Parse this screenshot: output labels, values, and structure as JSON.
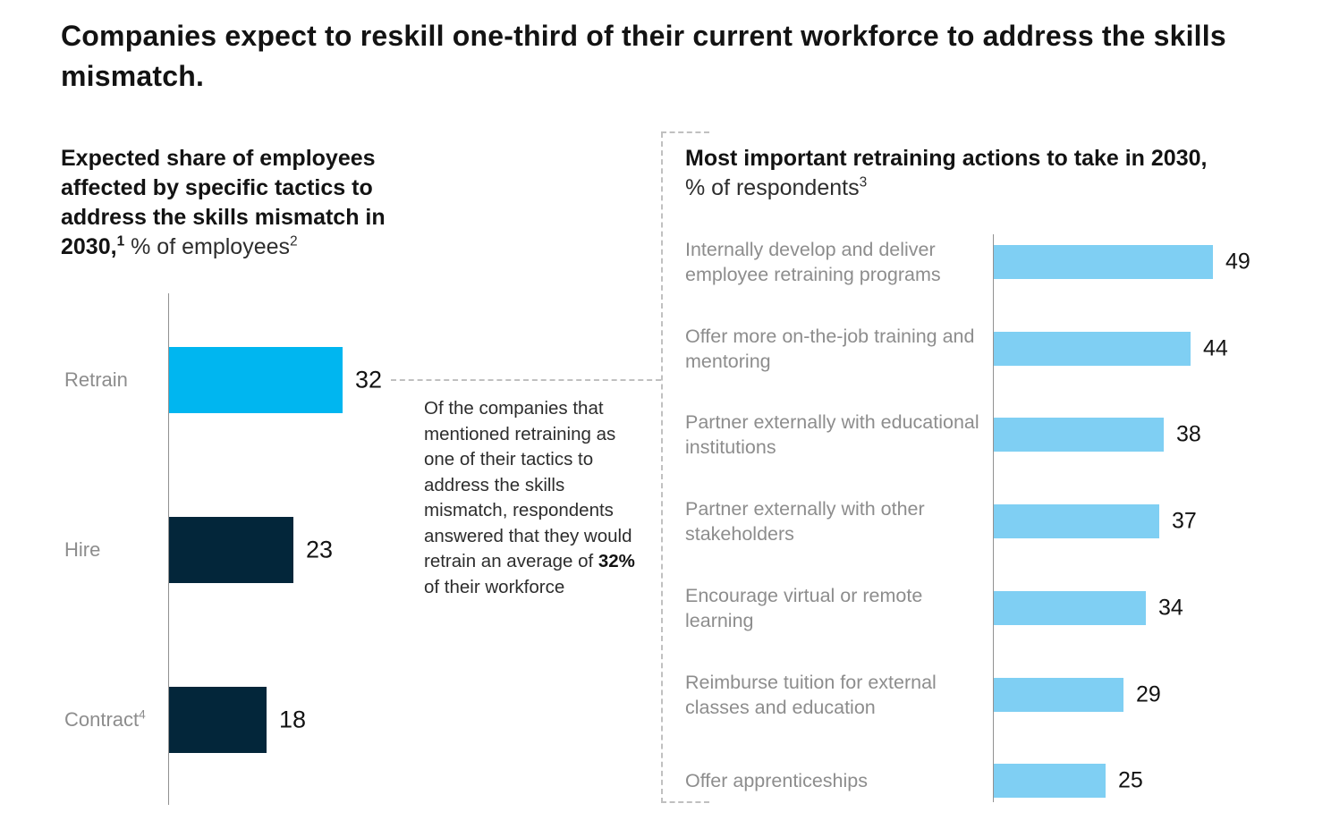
{
  "exhibit": {
    "title": "Companies expect to reskill one-third of their current workforce to address the skills mismatch."
  },
  "left_panel": {
    "heading_bold": "Expected share of employees affected by specific tactics to address the skills mismatch in 2030,",
    "heading_bold_sup": "1",
    "heading_regular": " % of employees",
    "heading_regular_sup": "2"
  },
  "right_panel": {
    "heading_bold": "Most important retraining actions to take in 2030,",
    "heading_regular": " % of respondents",
    "heading_regular_sup": "3"
  },
  "annotation": {
    "before": "Of the companies that mentioned retraining as one of their tactics to address the skills mismatch, respondents answered that they would retrain an average of ",
    "highlight": "32%",
    "after": " of their workforce"
  },
  "colors": {
    "bright_blue": "#00b6f0",
    "dark_navy": "#03263a",
    "light_blue": "#7fcff3",
    "label_gray": "#8d8d8d",
    "axis_gray": "#919191",
    "dash_gray": "#c0c0c0",
    "text_dark": "#131313"
  },
  "chart_data": [
    {
      "type": "bar",
      "orientation": "horizontal",
      "title": "Expected share of employees affected by specific tactics to address the skills mismatch in 2030, % of employees",
      "categories": [
        "Retrain",
        "Hire",
        "Contract"
      ],
      "category_sups": [
        "",
        "",
        "4"
      ],
      "values": [
        32,
        23,
        18
      ],
      "bar_colors": [
        "#00b6f0",
        "#03263a",
        "#03263a"
      ],
      "xlim": [
        0,
        32
      ],
      "value_labels": [
        "32",
        "23",
        "18"
      ],
      "grid": false,
      "legend": "none"
    },
    {
      "type": "bar",
      "orientation": "horizontal",
      "title": "Most important retraining actions to take in 2030, % of respondents",
      "categories": [
        "Internally develop and deliver employee retraining programs",
        "Offer more on-the-job training and mentoring",
        "Partner externally with educational institutions",
        "Partner externally with other stakeholders",
        "Encourage virtual or remote learning",
        "Reimburse tuition for external classes and education",
        "Offer apprenticeships"
      ],
      "values": [
        49,
        44,
        38,
        37,
        34,
        29,
        25
      ],
      "bar_colors": [
        "#7fcff3",
        "#7fcff3",
        "#7fcff3",
        "#7fcff3",
        "#7fcff3",
        "#7fcff3",
        "#7fcff3"
      ],
      "xlim": [
        0,
        49
      ],
      "value_labels": [
        "49",
        "44",
        "38",
        "37",
        "34",
        "29",
        "25"
      ],
      "grid": false,
      "legend": "none"
    }
  ]
}
